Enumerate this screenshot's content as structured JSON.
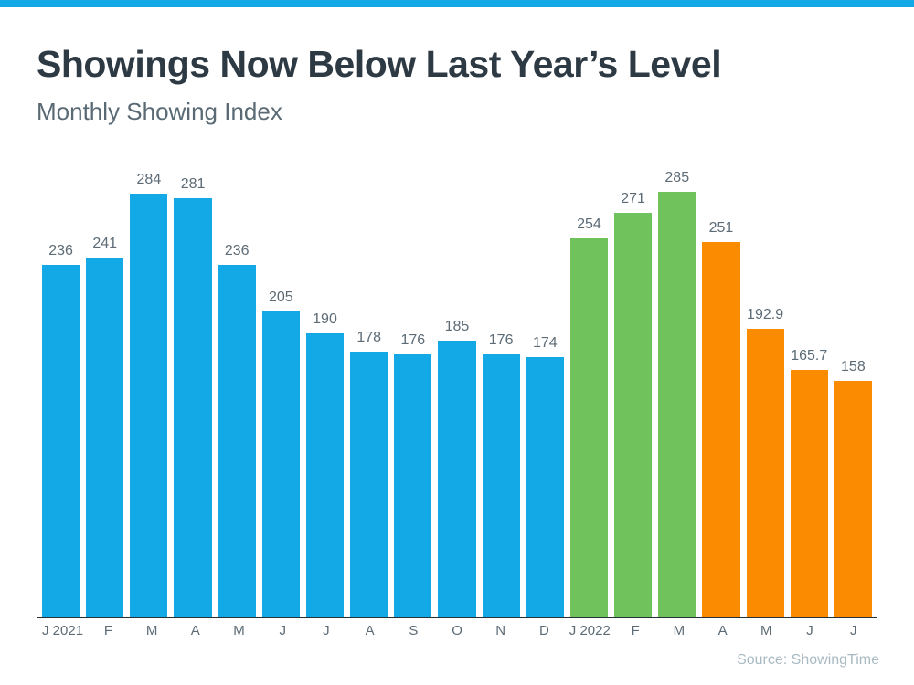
{
  "header": {
    "title": "Showings Now Below Last Year’s Level",
    "subtitle": "Monthly Showing Index"
  },
  "chart_data": {
    "type": "bar",
    "title": "Showings Now Below Last Year’s Level",
    "subtitle": "Monthly Showing Index",
    "categories": [
      "J 2021",
      "F",
      "M",
      "A",
      "M",
      "J",
      "J",
      "A",
      "S",
      "O",
      "N",
      "D",
      "J 2022",
      "F",
      "M",
      "A",
      "M",
      "J",
      "J"
    ],
    "values": [
      236,
      241,
      284,
      281,
      236,
      205,
      190,
      178,
      176,
      185,
      176,
      174,
      254,
      271,
      285,
      251,
      192.9,
      165.7,
      158
    ],
    "bar_colors": [
      "blue",
      "blue",
      "blue",
      "blue",
      "blue",
      "blue",
      "blue",
      "blue",
      "blue",
      "blue",
      "blue",
      "blue",
      "green",
      "green",
      "green",
      "orange",
      "orange",
      "orange",
      "orange"
    ],
    "palette": {
      "blue": "#12a9e6",
      "green": "#6fc25c",
      "orange": "#fb8b00"
    },
    "xlabel": "",
    "ylabel": "",
    "ylim": [
      0,
      285
    ],
    "grid": false,
    "value_labels_shown": true,
    "legend": "none"
  },
  "source": {
    "text": "Source: ShowingTime"
  },
  "accent": {
    "top_bar_color": "#12a9e6",
    "axis_color": "#263238",
    "title_color": "#2d3943",
    "label_color": "#5c6b76",
    "source_color": "#a9bac3"
  }
}
